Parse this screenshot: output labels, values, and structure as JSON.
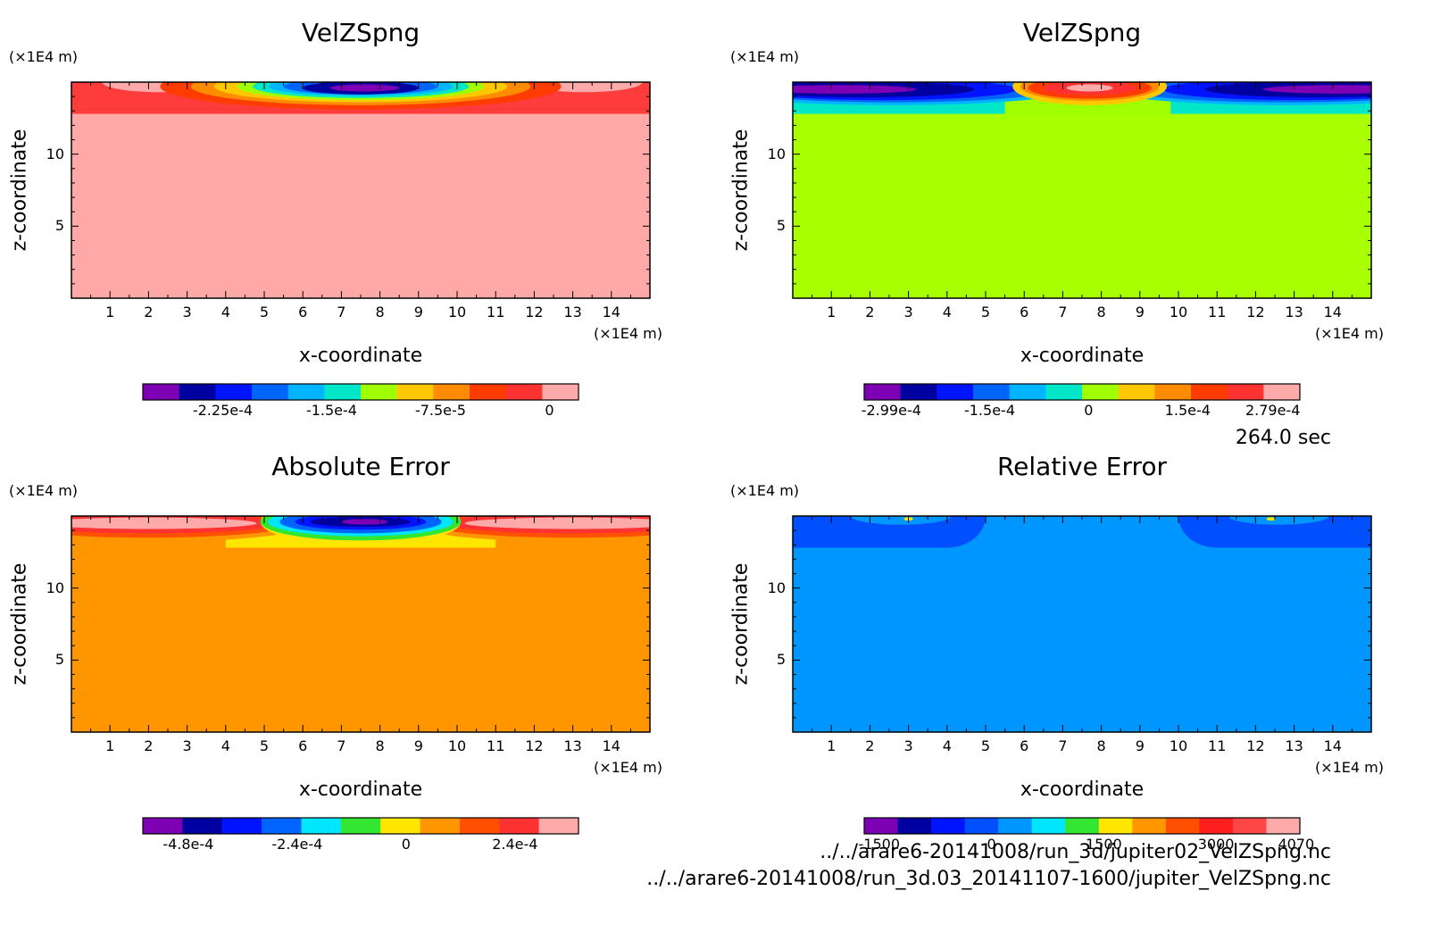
{
  "page": {
    "time_label": "264.0 sec",
    "files": [
      "../../arare6-20141008/run_3d/jupiter02_VelZSpng.nc",
      "../../arare6-20141008/run_3d.03_20141107-1600/jupiter_VelZSpng.nc"
    ]
  },
  "chart_data": [
    {
      "type": "heatmap",
      "title": "VelZSpng",
      "xlabel": "x-coordinate",
      "ylabel": "z-coordinate",
      "x_unit": "(×1E4 m)",
      "y_unit": "(×1E4 m)",
      "xlim": [
        0,
        15
      ],
      "ylim": [
        0,
        15
      ],
      "x_ticks": [
        1,
        2,
        3,
        4,
        5,
        6,
        7,
        8,
        9,
        10,
        11,
        12,
        13,
        14
      ],
      "y_ticks": [
        5,
        10
      ],
      "background_color": "#ffa8a8",
      "colorbar": {
        "colors": [
          "#7d00b4",
          "#0000a0",
          "#0014ff",
          "#0064ff",
          "#00b4ff",
          "#00e6c8",
          "#a0ff00",
          "#ffc800",
          "#ff8c00",
          "#ff3c00",
          "#ff3232",
          "#ffaaaa"
        ],
        "labels": [
          "-2.25e-4",
          "-1.5e-4",
          "-7.5e-5",
          "0"
        ],
        "label_values": [
          -0.000225,
          -0.00015,
          -7.5e-05,
          0
        ],
        "range": [
          -0.00028,
          2e-05
        ]
      },
      "regions": [
        {
          "type": "rect",
          "x0": 0,
          "x1": 15,
          "z0": 12.8,
          "z1": 15,
          "color": "#ff3c3c"
        },
        {
          "type": "ellipse",
          "cx": 2.3,
          "cz": 15,
          "rx": 1.5,
          "rz": 0.7,
          "color": "#ffaaaa"
        },
        {
          "type": "ellipse",
          "cx": 13.3,
          "cz": 15,
          "rx": 1.5,
          "rz": 0.7,
          "color": "#ffaaaa"
        },
        {
          "type": "ellipse",
          "cx": 7.5,
          "cz": 14.7,
          "rx": 5.2,
          "rz": 1.6,
          "color": "#ff3c00"
        },
        {
          "type": "ellipse",
          "cx": 7.5,
          "cz": 14.7,
          "rx": 4.4,
          "rz": 1.3,
          "color": "#ff8c00"
        },
        {
          "type": "ellipse",
          "cx": 7.5,
          "cz": 14.7,
          "rx": 3.8,
          "rz": 1.1,
          "color": "#ffc800"
        },
        {
          "type": "ellipse",
          "cx": 7.5,
          "cz": 14.7,
          "rx": 3.2,
          "rz": 0.95,
          "color": "#a0ff00"
        },
        {
          "type": "ellipse",
          "cx": 7.5,
          "cz": 14.7,
          "rx": 2.8,
          "rz": 0.8,
          "color": "#00e6c8"
        },
        {
          "type": "ellipse",
          "cx": 7.5,
          "cz": 14.7,
          "rx": 2.4,
          "rz": 0.65,
          "color": "#00b4ff"
        },
        {
          "type": "ellipse",
          "cx": 7.5,
          "cz": 14.7,
          "rx": 2.0,
          "rz": 0.55,
          "color": "#0064ff"
        },
        {
          "type": "ellipse",
          "cx": 7.5,
          "cz": 14.6,
          "rx": 1.5,
          "rz": 0.45,
          "color": "#0000a0"
        },
        {
          "type": "ellipse",
          "cx": 7.6,
          "cz": 14.6,
          "rx": 0.9,
          "rz": 0.25,
          "color": "#7d00b4"
        }
      ]
    },
    {
      "type": "heatmap",
      "title": "VelZSpng",
      "xlabel": "x-coordinate",
      "ylabel": "z-coordinate",
      "x_unit": "(×1E4 m)",
      "y_unit": "(×1E4 m)",
      "xlim": [
        0,
        15
      ],
      "ylim": [
        0,
        15
      ],
      "x_ticks": [
        1,
        2,
        3,
        4,
        5,
        6,
        7,
        8,
        9,
        10,
        11,
        12,
        13,
        14
      ],
      "y_ticks": [
        5,
        10
      ],
      "background_color": "#a8ff00",
      "colorbar": {
        "colors": [
          "#7d00b4",
          "#0000a0",
          "#0014ff",
          "#0064ff",
          "#00b4ff",
          "#00e6c8",
          "#a0ff00",
          "#ffc800",
          "#ff8c00",
          "#ff3c00",
          "#ff3232",
          "#ffaaaa"
        ],
        "labels": [
          "-2.99e-4",
          "-1.5e-4",
          "0",
          "1.5e-4",
          "2.79e-4"
        ],
        "label_values": [
          -0.000299,
          -0.00015,
          0,
          0.00015,
          0.000279
        ],
        "range": [
          -0.00034,
          0.00032
        ]
      },
      "regions": [
        {
          "type": "rect",
          "x0": 0,
          "x1": 15,
          "z0": 12.8,
          "z1": 15,
          "color": "#00e6c8"
        },
        {
          "type": "rect",
          "x0": 5.5,
          "x1": 9.8,
          "z0": 12.8,
          "z1": 15,
          "color": "#a0ff00"
        },
        {
          "type": "ellipse",
          "cx": 2.6,
          "cz": 14.7,
          "rx": 5.0,
          "rz": 1.3,
          "color": "#00b4ff"
        },
        {
          "type": "ellipse",
          "cx": 12.8,
          "cz": 14.7,
          "rx": 5.0,
          "rz": 1.3,
          "color": "#00b4ff"
        },
        {
          "type": "ellipse",
          "cx": 2.6,
          "cz": 14.6,
          "rx": 4.3,
          "rz": 1.0,
          "color": "#0064ff"
        },
        {
          "type": "ellipse",
          "cx": 12.8,
          "cz": 14.6,
          "rx": 4.3,
          "rz": 1.0,
          "color": "#0064ff"
        },
        {
          "type": "ellipse",
          "cx": 2.3,
          "cz": 14.5,
          "rx": 3.5,
          "rz": 0.75,
          "color": "#0014ff"
        },
        {
          "type": "ellipse",
          "cx": 13.1,
          "cz": 14.5,
          "rx": 3.5,
          "rz": 0.75,
          "color": "#0014ff"
        },
        {
          "type": "ellipse",
          "cx": 1.8,
          "cz": 14.5,
          "rx": 2.9,
          "rz": 0.55,
          "color": "#0000a0"
        },
        {
          "type": "ellipse",
          "cx": 13.6,
          "cz": 14.5,
          "rx": 2.9,
          "rz": 0.55,
          "color": "#0000a0"
        },
        {
          "type": "ellipse",
          "cx": 1.2,
          "cz": 14.5,
          "rx": 2.0,
          "rz": 0.3,
          "color": "#7d00b4"
        },
        {
          "type": "ellipse",
          "cx": 14.2,
          "cz": 14.5,
          "rx": 2.0,
          "rz": 0.3,
          "color": "#7d00b4"
        },
        {
          "type": "ellipse",
          "cx": 7.7,
          "cz": 14.7,
          "rx": 2.0,
          "rz": 1.3,
          "color": "#ffc800"
        },
        {
          "type": "ellipse",
          "cx": 7.7,
          "cz": 14.7,
          "rx": 1.8,
          "rz": 1.0,
          "color": "#ff8c00"
        },
        {
          "type": "ellipse",
          "cx": 7.7,
          "cz": 14.6,
          "rx": 1.6,
          "rz": 0.75,
          "color": "#ff3c00"
        },
        {
          "type": "ellipse",
          "cx": 7.7,
          "cz": 14.6,
          "rx": 1.2,
          "rz": 0.5,
          "color": "#ff3232"
        },
        {
          "type": "ellipse",
          "cx": 7.7,
          "cz": 14.6,
          "rx": 0.6,
          "rz": 0.25,
          "color": "#ffaaaa"
        }
      ]
    },
    {
      "type": "heatmap",
      "title": "Absolute Error",
      "xlabel": "x-coordinate",
      "ylabel": "z-coordinate",
      "x_unit": "(×1E4 m)",
      "y_unit": "(×1E4 m)",
      "xlim": [
        0,
        15
      ],
      "ylim": [
        0,
        15
      ],
      "x_ticks": [
        1,
        2,
        3,
        4,
        5,
        6,
        7,
        8,
        9,
        10,
        11,
        12,
        13,
        14
      ],
      "y_ticks": [
        5,
        10
      ],
      "background_color": "#ff9600",
      "colorbar": {
        "colors": [
          "#7d00b4",
          "#0000a0",
          "#0014ff",
          "#0064ff",
          "#00e6ff",
          "#32e632",
          "#ffe600",
          "#ff9600",
          "#ff5000",
          "#ff3232",
          "#ffaaaa"
        ],
        "labels": [
          "-4.8e-4",
          "-2.4e-4",
          "0",
          "2.4e-4"
        ],
        "label_values": [
          -0.00048,
          -0.00024,
          0,
          0.00024
        ],
        "range": [
          -0.00058,
          0.00038
        ]
      },
      "regions": [
        {
          "type": "rect",
          "x0": 4.0,
          "x1": 11.0,
          "z0": 12.8,
          "z1": 15,
          "color": "#ffe600"
        },
        {
          "type": "ellipse",
          "cx": 2.0,
          "cz": 14.5,
          "rx": 4.2,
          "rz": 1.3,
          "color": "#ff9600"
        },
        {
          "type": "ellipse",
          "cx": 13.0,
          "cz": 14.5,
          "rx": 4.2,
          "rz": 1.3,
          "color": "#ff9600"
        },
        {
          "type": "ellipse",
          "cx": 2.0,
          "cz": 14.5,
          "rx": 3.8,
          "rz": 1.0,
          "color": "#ff5000"
        },
        {
          "type": "ellipse",
          "cx": 13.0,
          "cz": 14.5,
          "rx": 3.8,
          "rz": 1.0,
          "color": "#ff5000"
        },
        {
          "type": "ellipse",
          "cx": 2.0,
          "cz": 14.5,
          "rx": 3.4,
          "rz": 0.7,
          "color": "#ff3232"
        },
        {
          "type": "ellipse",
          "cx": 13.0,
          "cz": 14.5,
          "rx": 3.4,
          "rz": 0.7,
          "color": "#ff3232"
        },
        {
          "type": "ellipse",
          "cx": 2.0,
          "cz": 14.5,
          "rx": 2.8,
          "rz": 0.4,
          "color": "#ffaaaa"
        },
        {
          "type": "ellipse",
          "cx": 13.0,
          "cz": 14.5,
          "rx": 2.8,
          "rz": 0.4,
          "color": "#ffaaaa"
        },
        {
          "type": "ellipse",
          "cx": 7.5,
          "cz": 14.6,
          "rx": 2.6,
          "rz": 1.6,
          "color": "#ffe600"
        },
        {
          "type": "ellipse",
          "cx": 7.5,
          "cz": 14.6,
          "rx": 2.6,
          "rz": 1.3,
          "color": "#32e632"
        },
        {
          "type": "ellipse",
          "cx": 7.5,
          "cz": 14.6,
          "rx": 2.4,
          "rz": 1.0,
          "color": "#00e6ff"
        },
        {
          "type": "ellipse",
          "cx": 7.5,
          "cz": 14.6,
          "rx": 2.1,
          "rz": 0.8,
          "color": "#0064ff"
        },
        {
          "type": "ellipse",
          "cx": 7.5,
          "cz": 14.6,
          "rx": 1.7,
          "rz": 0.55,
          "color": "#0014ff"
        },
        {
          "type": "ellipse",
          "cx": 7.5,
          "cz": 14.6,
          "rx": 1.3,
          "rz": 0.35,
          "color": "#0000a0"
        },
        {
          "type": "ellipse",
          "cx": 7.6,
          "cz": 14.6,
          "rx": 0.6,
          "rz": 0.2,
          "color": "#7d00b4"
        }
      ]
    },
    {
      "type": "heatmap",
      "title": "Relative Error",
      "xlabel": "x-coordinate",
      "ylabel": "z-coordinate",
      "x_unit": "(×1E4 m)",
      "y_unit": "(×1E4 m)",
      "xlim": [
        0,
        15
      ],
      "ylim": [
        0,
        15
      ],
      "x_ticks": [
        1,
        2,
        3,
        4,
        5,
        6,
        7,
        8,
        9,
        10,
        11,
        12,
        13,
        14
      ],
      "y_ticks": [
        5,
        10
      ],
      "background_color": "#0096ff",
      "colorbar": {
        "colors": [
          "#7d00b4",
          "#0000a0",
          "#0014ff",
          "#0050ff",
          "#0096ff",
          "#00e6ff",
          "#32e632",
          "#ffe600",
          "#ff9600",
          "#ff5000",
          "#ff1e1e",
          "#ff4646",
          "#ffaaaa"
        ],
        "labels": [
          "-1500",
          "0",
          "1500",
          "3000",
          "4070"
        ],
        "label_values": [
          -1500,
          0,
          1500,
          3000,
          4070
        ],
        "range": [
          -1700,
          4120
        ]
      },
      "regions": [
        {
          "type": "rect",
          "x0": 0,
          "x1": 4.0,
          "z0": 12.8,
          "z1": 15,
          "color": "#0050ff"
        },
        {
          "type": "rect",
          "x0": 11.0,
          "x1": 15,
          "z0": 12.8,
          "z1": 15,
          "color": "#0050ff"
        },
        {
          "type": "ellipse",
          "cx": 4.0,
          "cz": 12.8,
          "rx": 0.01,
          "rz": 0.01,
          "color": "#0050ff"
        },
        {
          "type": "ellipse",
          "cx": 4.0,
          "cz": 15,
          "rx": 1.0,
          "rz": 2.2,
          "color": "#0050ff"
        },
        {
          "type": "ellipse",
          "cx": 11.0,
          "cz": 15,
          "rx": 1.0,
          "rz": 2.2,
          "color": "#0050ff"
        },
        {
          "type": "ellipse",
          "cx": 2.8,
          "cz": 15,
          "rx": 1.3,
          "rz": 0.6,
          "color": "#0096ff"
        },
        {
          "type": "ellipse",
          "cx": 12.6,
          "cz": 15,
          "rx": 1.3,
          "rz": 0.6,
          "color": "#0096ff"
        },
        {
          "type": "ellipse",
          "cx": 3.0,
          "cz": 14.8,
          "rx": 0.12,
          "rz": 0.12,
          "color": "#ffe600"
        },
        {
          "type": "ellipse",
          "cx": 12.4,
          "cz": 14.8,
          "rx": 0.12,
          "rz": 0.12,
          "color": "#ffe600"
        }
      ]
    }
  ]
}
